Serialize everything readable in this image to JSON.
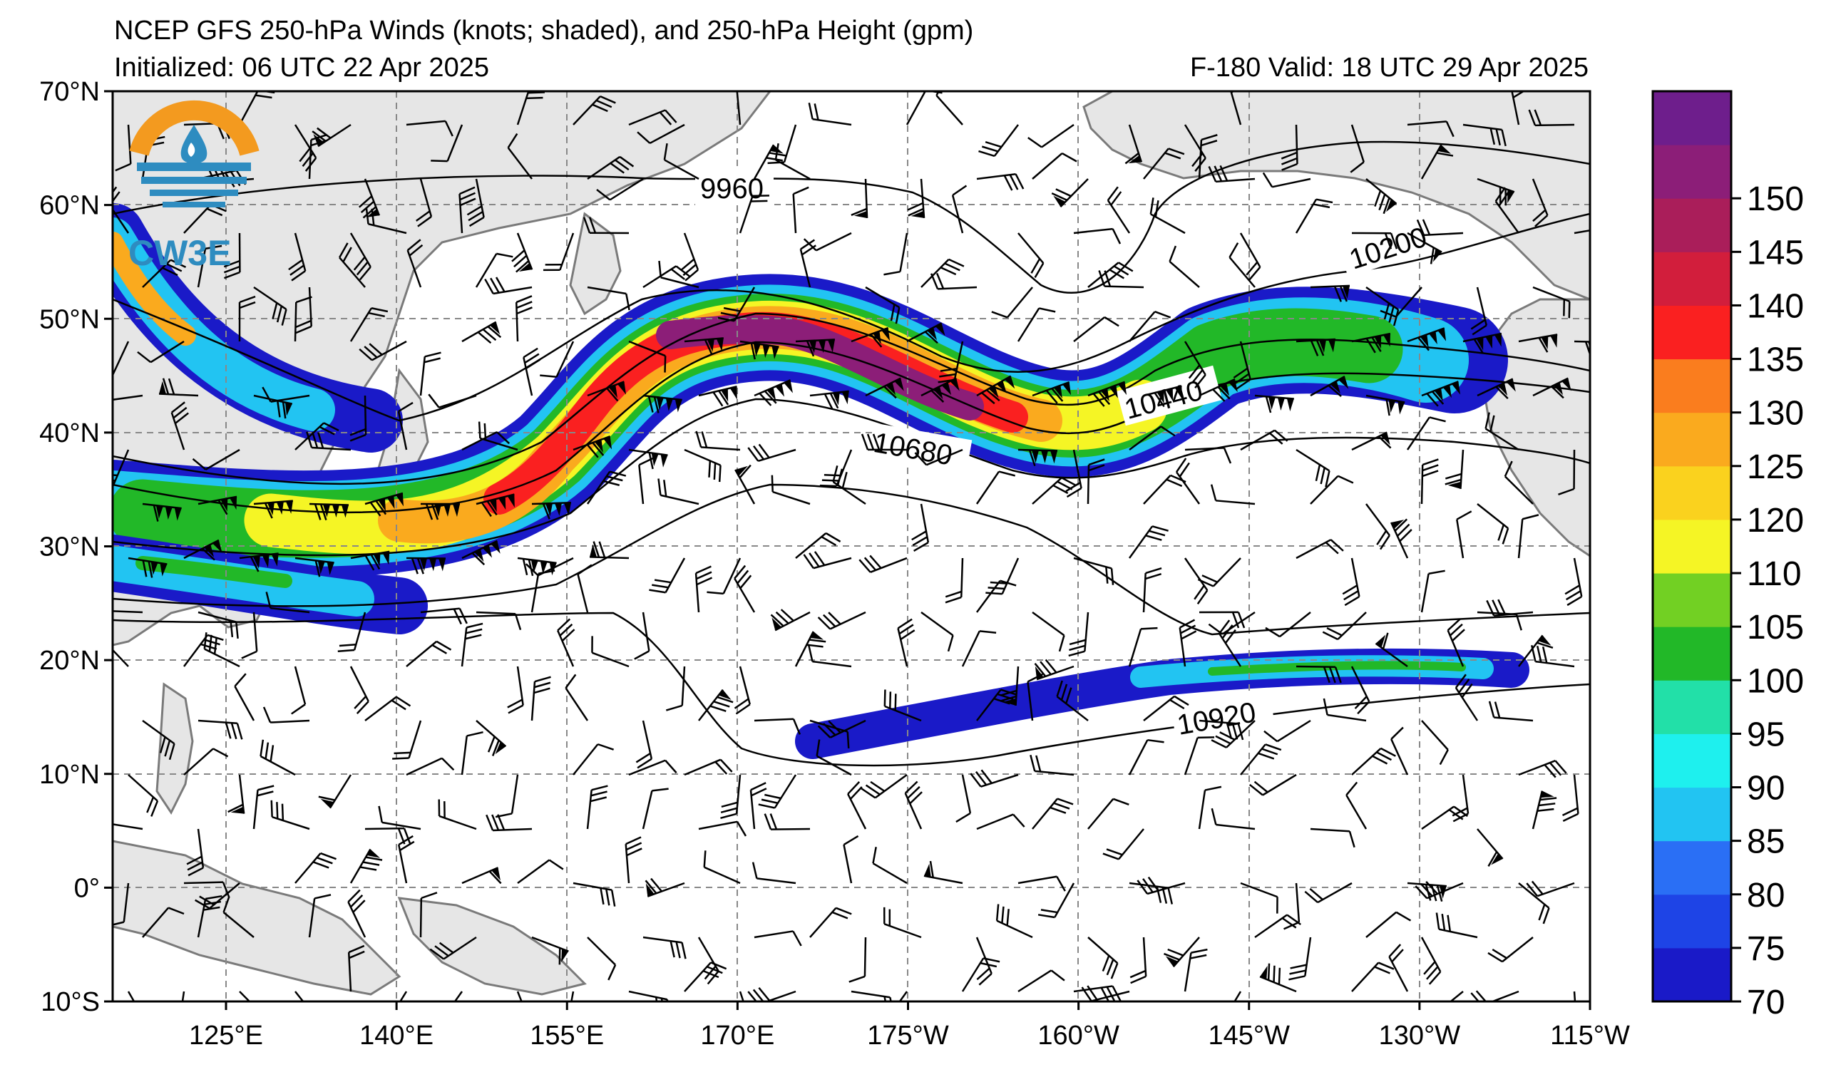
{
  "title": {
    "line1": "NCEP GFS 250-hPa Winds (knots; shaded), and 250-hPa Height (gpm)",
    "initialized": "Initialized: 06 UTC 22 Apr 2025",
    "valid": "F-180  Valid: 18 UTC 29 Apr 2025"
  },
  "logo": {
    "text": "CW3E",
    "icon": "cw3e-water-drop-logo-icon"
  },
  "axes": {
    "lat_labels": [
      "70°N",
      "60°N",
      "50°N",
      "40°N",
      "30°N",
      "20°N",
      "10°N",
      "0°",
      "10°S"
    ],
    "lon_labels": [
      "125°E",
      "140°E",
      "155°E",
      "170°E",
      "175°W",
      "160°W",
      "145°W",
      "130°W",
      "115°W"
    ]
  },
  "colorbar": {
    "ticks": [
      "150",
      "145",
      "140",
      "135",
      "130",
      "125",
      "120",
      "110",
      "105",
      "100",
      "95",
      "90",
      "85",
      "80",
      "75",
      "70"
    ],
    "colors": [
      "#1a1ac8",
      "#1e44e6",
      "#2a6ff5",
      "#22c4f2",
      "#1ef0ee",
      "#22e0a8",
      "#22b828",
      "#72d023",
      "#f5f525",
      "#fad21e",
      "#faaa1e",
      "#fa7d1e",
      "#fa2020",
      "#d21e3c",
      "#aa1e5a",
      "#8c1e78",
      "#6e1e8c"
    ]
  },
  "contour_labels": [
    "9960",
    "10200",
    "10440",
    "10680",
    "10920"
  ],
  "colors": {
    "land": "#e6e6e6",
    "coast": "#7a7a7a",
    "grid": "#888888"
  }
}
